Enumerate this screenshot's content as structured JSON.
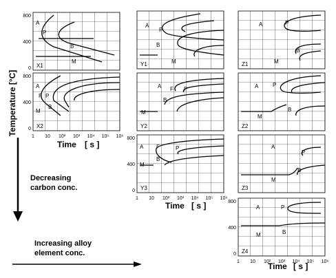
{
  "axes": {
    "y_label": "Temperature [°C]",
    "x_label_time": "Time",
    "x_label_unit": "[ s ]",
    "y_ticks": [
      "800",
      "400",
      "0"
    ],
    "x_ticks": [
      "1",
      "10",
      "10²",
      "10³",
      "10⁴",
      "10⁵",
      "10⁶"
    ]
  },
  "phases": {
    "austenite": "A",
    "pearlite": "P",
    "bainite": "B",
    "ferrite": "F",
    "martensite": "M"
  },
  "panels": [
    "X1",
    "X2",
    "Y1",
    "Y2",
    "Y3",
    "Z1",
    "Z2",
    "Z3",
    "Z4"
  ],
  "annotations": {
    "vertical_1": "Decreasing",
    "vertical_2": "carbon conc.",
    "horizontal_1": "Increasing alloy",
    "horizontal_2": "element conc."
  }
}
